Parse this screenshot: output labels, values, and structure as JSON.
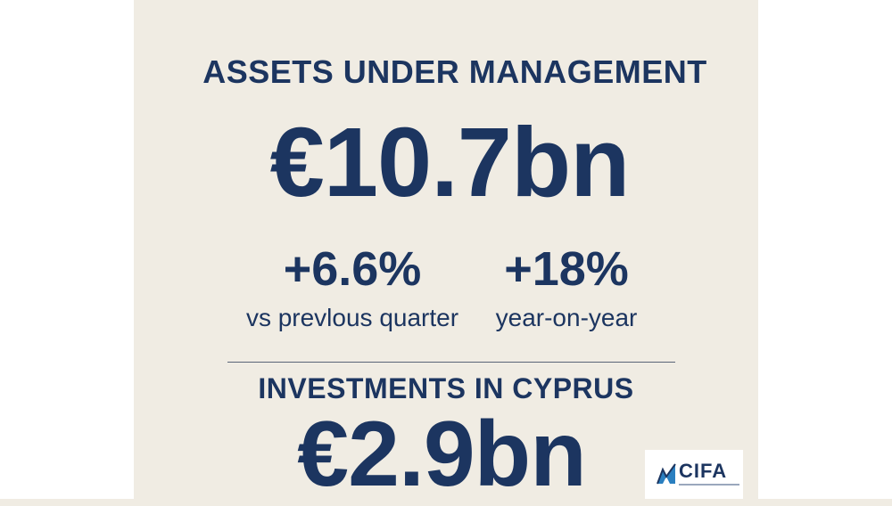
{
  "aum": {
    "title": "ASSETS UNDER MANAGEMENT",
    "value": "€10.7bn"
  },
  "stats": [
    {
      "value": "+6.6%",
      "label": "vs prevlous quarter"
    },
    {
      "value": "+18%",
      "label": "year-on-year"
    }
  ],
  "investments": {
    "title": "INVESTMENTS IN CYPRUS",
    "value": "€2.9bn"
  },
  "logo": {
    "text": "CIFA",
    "icon": "cifa-logo-mark"
  },
  "colors": {
    "background": "#f0ece3",
    "text": "#1c3560",
    "accent": "#2a7fc0"
  }
}
